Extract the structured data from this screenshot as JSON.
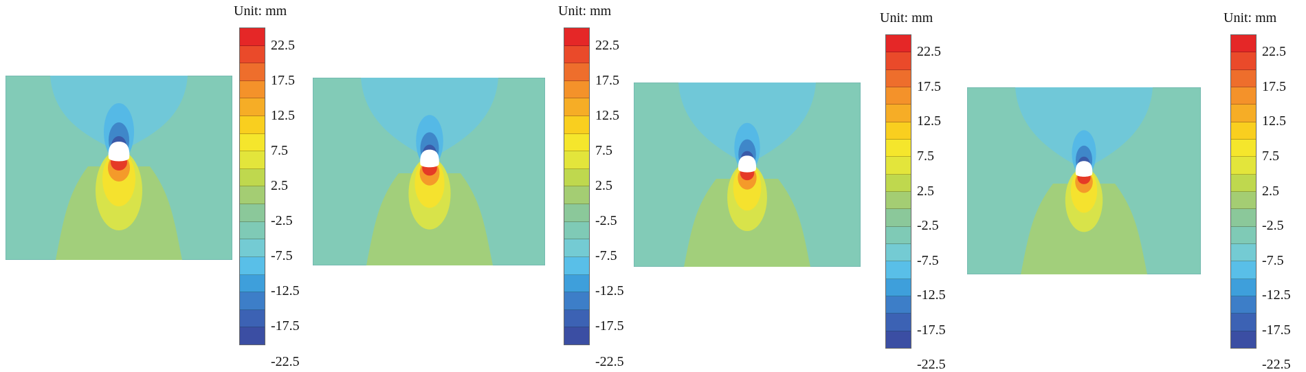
{
  "unit_label": "Unit: mm",
  "colorbar": {
    "colors": [
      "#e52727",
      "#ea4a2a",
      "#ee6e2c",
      "#f4922a",
      "#f6ad26",
      "#f9cf1f",
      "#f5e62c",
      "#e3e53b",
      "#bfd84e",
      "#a4cd73",
      "#8bc89a",
      "#7fcab6",
      "#74cbd3",
      "#59bfe8",
      "#3e9fdb",
      "#3d7ec8",
      "#3c62b4",
      "#3b4ea3"
    ],
    "tick_labels": [
      "22.5",
      "17.5",
      "12.5",
      "7.5",
      "2.5",
      "-2.5",
      "-7.5",
      "-12.5",
      "-17.5",
      "-22.5"
    ]
  },
  "field_colors": {
    "background": "#82cbb7",
    "upper_light": "#70c8d8",
    "upper_mid": "#55b9e6",
    "upper_dark": "#3f87c9",
    "upper_core": "#3a5aa8",
    "lower_green": "#a2cf7b",
    "lower_yellowgreen": "#d8e34a",
    "lower_yellow": "#f5e22e",
    "lower_orange": "#f49a2a",
    "lower_red": "#e53a26",
    "void": "#ffffff"
  },
  "panels": [
    {
      "id": "a"
    },
    {
      "id": "b"
    },
    {
      "id": "c"
    },
    {
      "id": "d"
    }
  ]
}
